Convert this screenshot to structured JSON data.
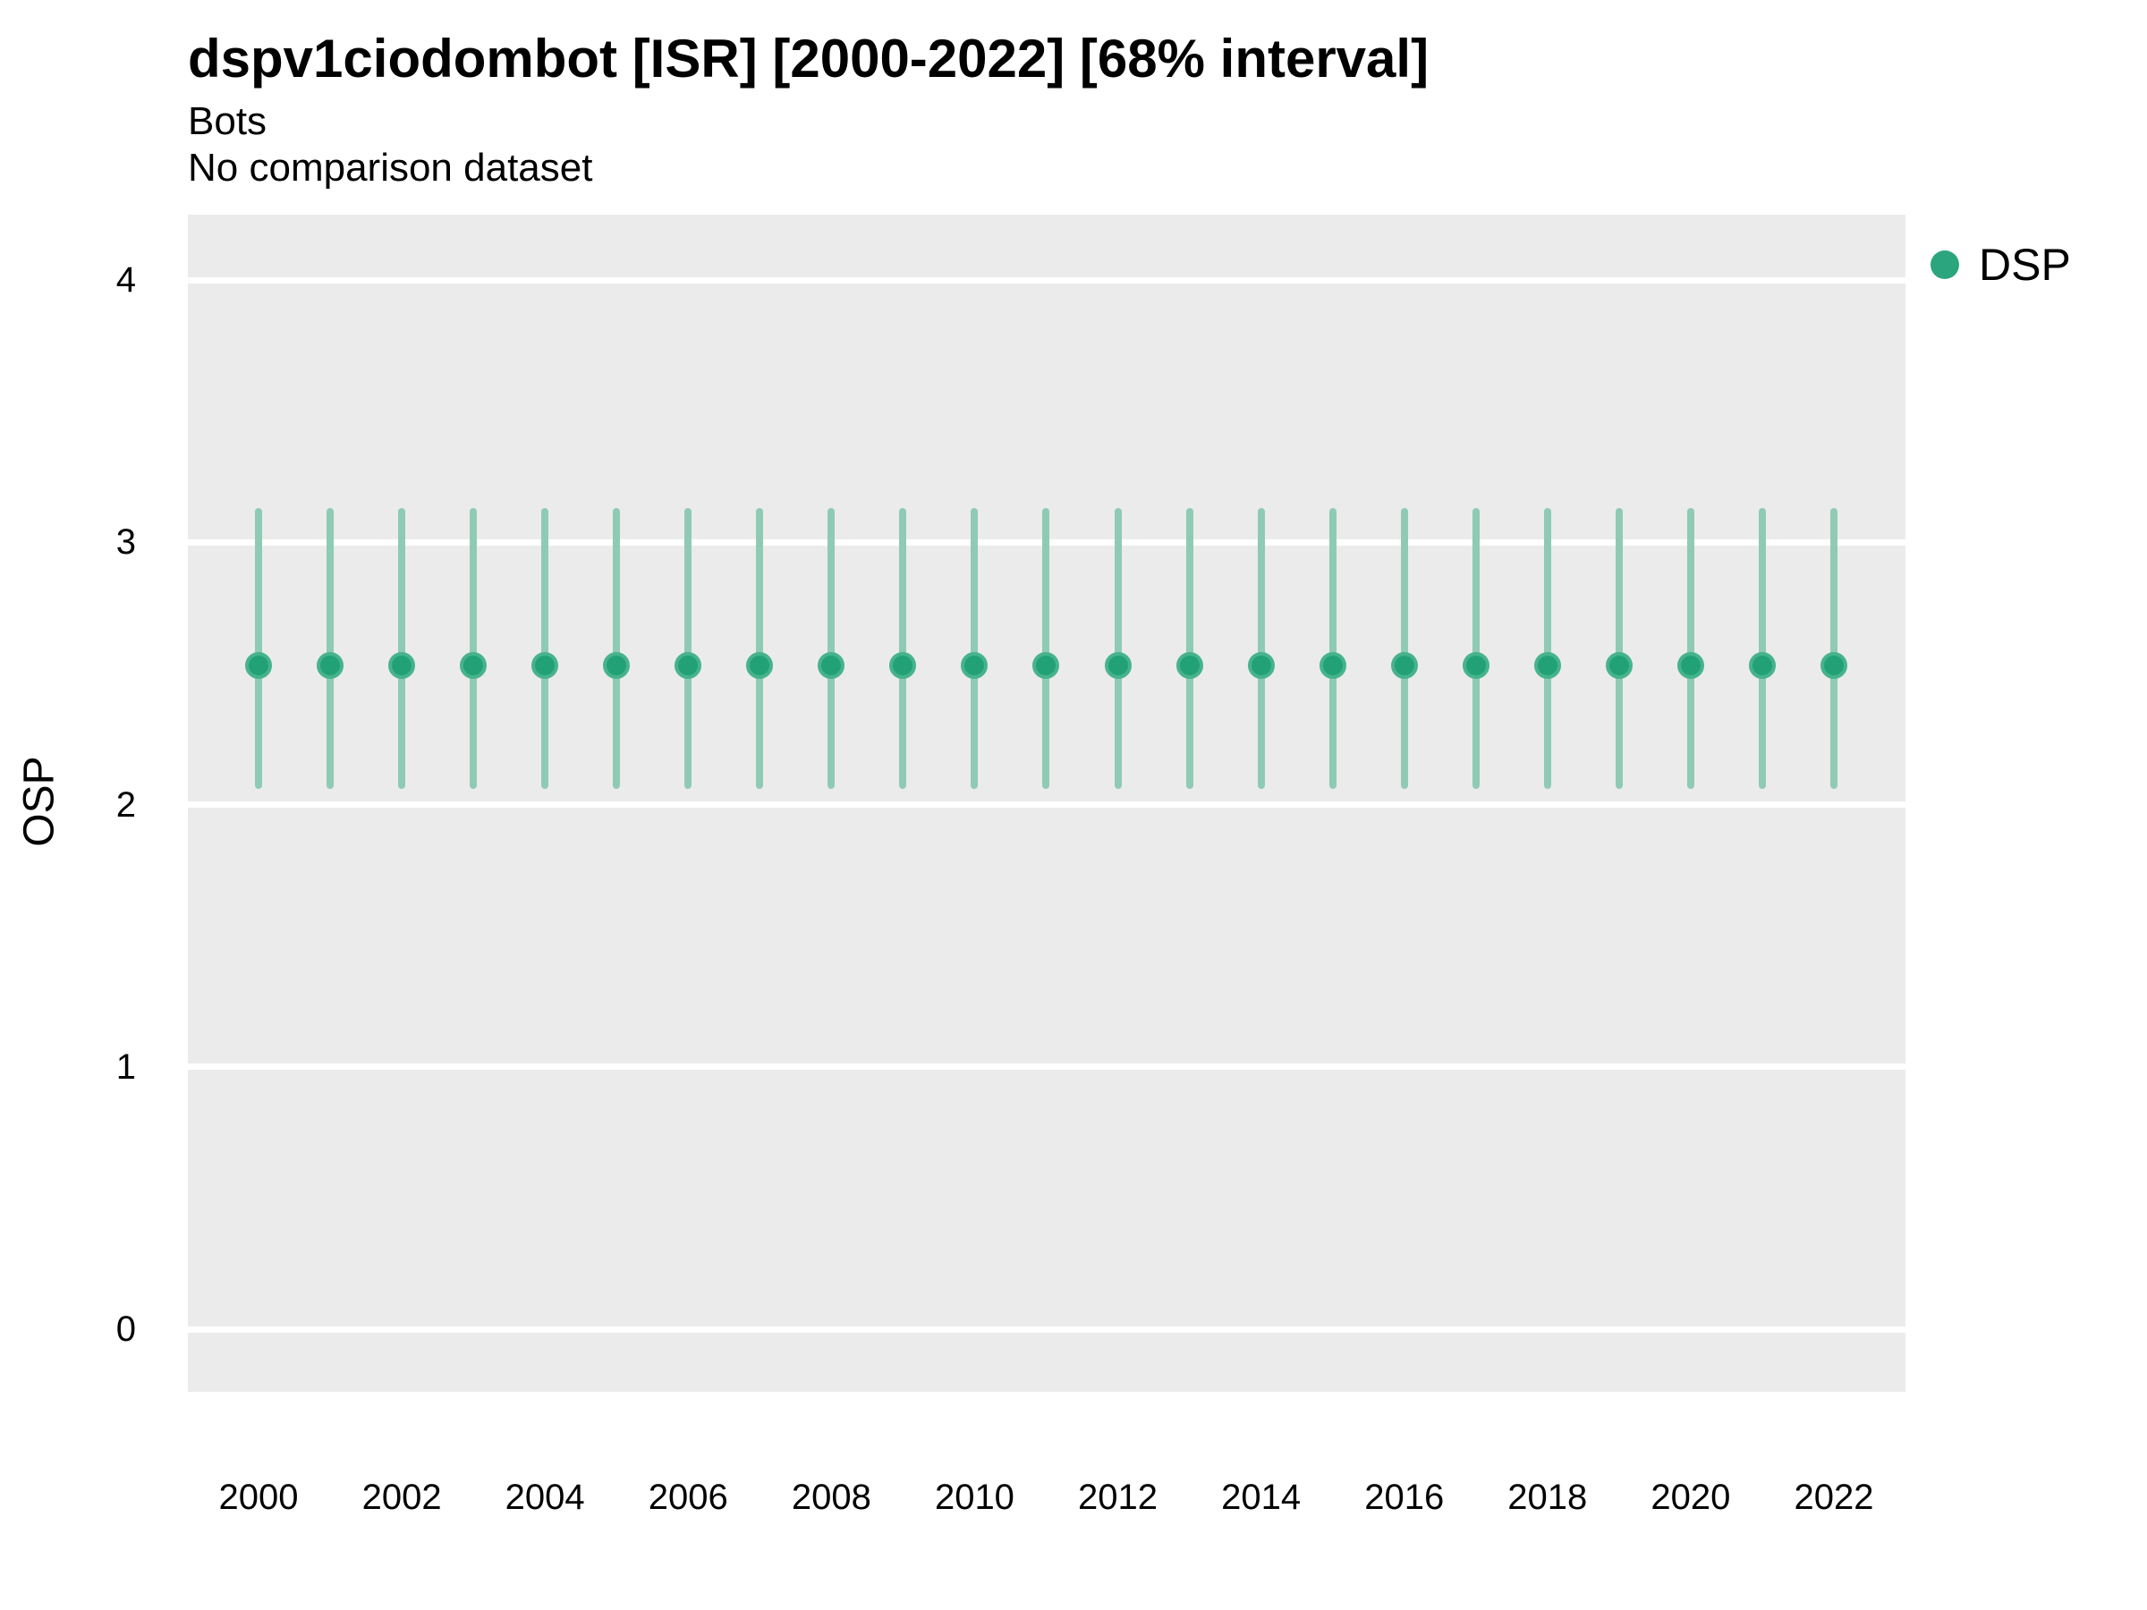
{
  "header": {
    "title": "dspv1ciodombot [ISR] [2000-2022] [68% interval]",
    "subtitle": "Bots",
    "subtitle2": "No comparison dataset"
  },
  "legend": {
    "position": "right",
    "items": [
      {
        "label": "DSP",
        "color": "#2BA57E",
        "marker": "circle-icon"
      }
    ]
  },
  "axes": {
    "y_title": "OSP",
    "x_title": "",
    "y_ticks": [
      0,
      1,
      2,
      3,
      4
    ],
    "x_ticks": [
      2000,
      2002,
      2004,
      2006,
      2008,
      2010,
      2012,
      2014,
      2016,
      2018,
      2020,
      2022
    ]
  },
  "chart_data": {
    "type": "scatter",
    "subtype": "pointrange-error-bars",
    "title": "dspv1ciodombot [ISR] [2000-2022] [68% interval]",
    "subtitle": "Bots",
    "caption": "No comparison dataset",
    "xlabel": "",
    "ylabel": "OSP",
    "interval": "68%",
    "xlim": [
      1999,
      2023
    ],
    "ylim": [
      -0.24,
      4.25
    ],
    "grid": "major-horizontal-only",
    "legend_position": "right",
    "colors": {
      "point_fill": "#22A176",
      "point_ring": "#47B38D",
      "bar": "#8FCBB4",
      "panel_bg": "#EBEBEB",
      "grid": "#FFFFFF",
      "text": "#000000"
    },
    "series": [
      {
        "name": "DSP",
        "color": "#2BA57E",
        "points": [
          {
            "year": 2000,
            "mean": 2.53,
            "lo": 2.06,
            "hi": 3.13
          },
          {
            "year": 2001,
            "mean": 2.53,
            "lo": 2.06,
            "hi": 3.13
          },
          {
            "year": 2002,
            "mean": 2.53,
            "lo": 2.06,
            "hi": 3.13
          },
          {
            "year": 2003,
            "mean": 2.53,
            "lo": 2.06,
            "hi": 3.13
          },
          {
            "year": 2004,
            "mean": 2.53,
            "lo": 2.06,
            "hi": 3.13
          },
          {
            "year": 2005,
            "mean": 2.53,
            "lo": 2.06,
            "hi": 3.13
          },
          {
            "year": 2006,
            "mean": 2.53,
            "lo": 2.06,
            "hi": 3.13
          },
          {
            "year": 2007,
            "mean": 2.53,
            "lo": 2.06,
            "hi": 3.13
          },
          {
            "year": 2008,
            "mean": 2.53,
            "lo": 2.06,
            "hi": 3.13
          },
          {
            "year": 2009,
            "mean": 2.53,
            "lo": 2.06,
            "hi": 3.13
          },
          {
            "year": 2010,
            "mean": 2.53,
            "lo": 2.06,
            "hi": 3.13
          },
          {
            "year": 2011,
            "mean": 2.53,
            "lo": 2.06,
            "hi": 3.13
          },
          {
            "year": 2012,
            "mean": 2.53,
            "lo": 2.06,
            "hi": 3.13
          },
          {
            "year": 2013,
            "mean": 2.53,
            "lo": 2.06,
            "hi": 3.13
          },
          {
            "year": 2014,
            "mean": 2.53,
            "lo": 2.06,
            "hi": 3.13
          },
          {
            "year": 2015,
            "mean": 2.53,
            "lo": 2.06,
            "hi": 3.13
          },
          {
            "year": 2016,
            "mean": 2.53,
            "lo": 2.06,
            "hi": 3.13
          },
          {
            "year": 2017,
            "mean": 2.53,
            "lo": 2.06,
            "hi": 3.13
          },
          {
            "year": 2018,
            "mean": 2.53,
            "lo": 2.06,
            "hi": 3.13
          },
          {
            "year": 2019,
            "mean": 2.53,
            "lo": 2.06,
            "hi": 3.13
          },
          {
            "year": 2020,
            "mean": 2.53,
            "lo": 2.06,
            "hi": 3.13
          },
          {
            "year": 2021,
            "mean": 2.53,
            "lo": 2.06,
            "hi": 3.13
          },
          {
            "year": 2022,
            "mean": 2.53,
            "lo": 2.06,
            "hi": 3.13
          }
        ]
      }
    ]
  }
}
